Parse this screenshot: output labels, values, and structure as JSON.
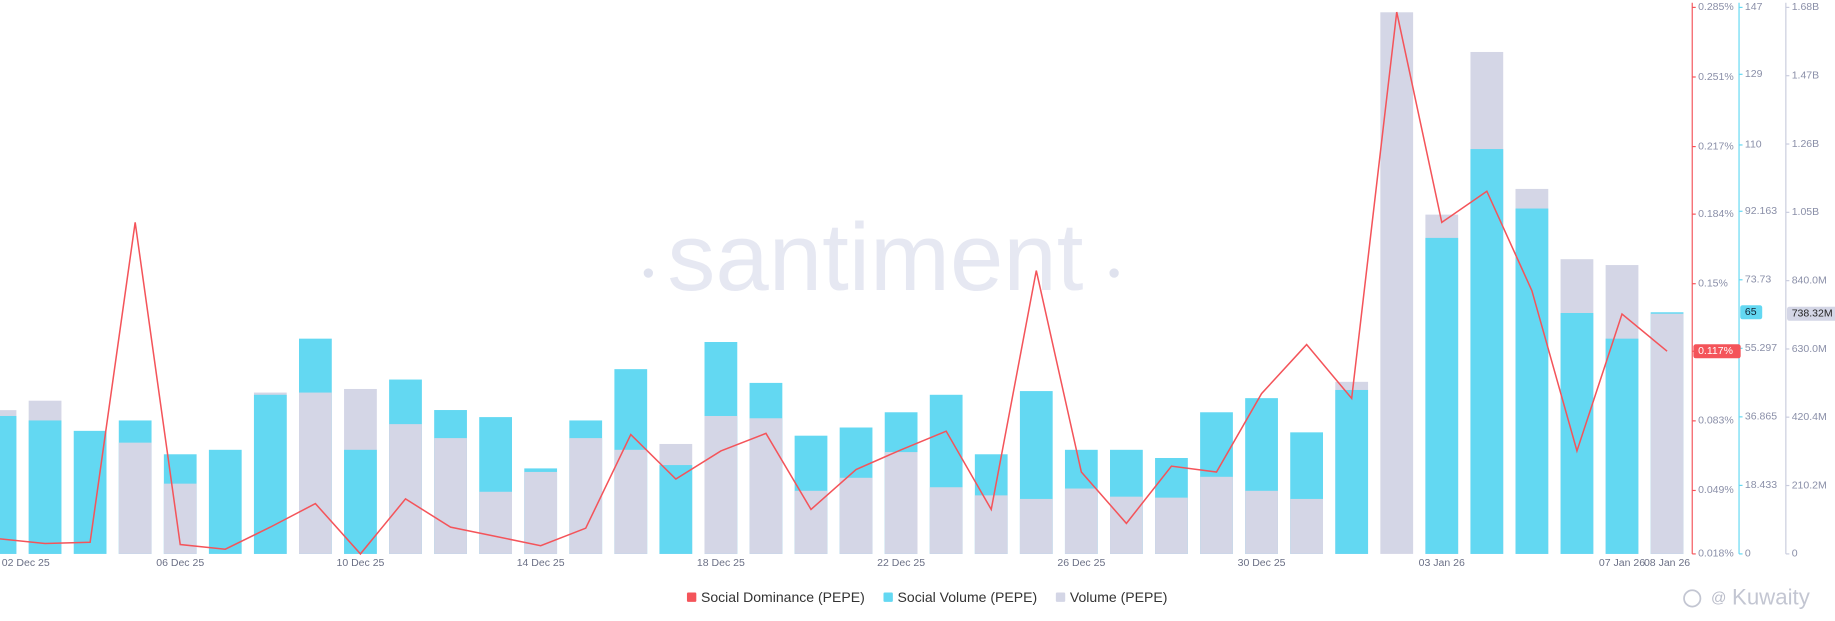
{
  "chart_data": {
    "type": "combo",
    "watermark": "santiment",
    "credit": "Kuwaity",
    "categories": [
      "02 Dec 25",
      null,
      null,
      null,
      "06 Dec 25",
      null,
      null,
      null,
      "10 Dec 25",
      null,
      null,
      null,
      "14 Dec 25",
      null,
      null,
      null,
      "18 Dec 25",
      null,
      null,
      null,
      "22 Dec 25",
      null,
      null,
      null,
      "26 Dec 25",
      null,
      null,
      null,
      "30 Dec 25",
      null,
      null,
      null,
      "03 Jan 26",
      null,
      null,
      null,
      "07 Jan 26",
      "08 Jan 26"
    ],
    "ylim": [
      0.018,
      0.285
    ],
    "yticks": [
      {
        "value": 0.018,
        "label": "0.018%"
      },
      {
        "value": 0.049,
        "label": "0.049%"
      },
      {
        "value": 0.083,
        "label": "0.083%"
      },
      {
        "value": 0.117,
        "label": "0.117%"
      },
      {
        "value": 0.15,
        "label": "0.15%"
      },
      {
        "value": 0.184,
        "label": "0.184%"
      },
      {
        "value": 0.217,
        "label": "0.217%"
      },
      {
        "value": 0.251,
        "label": "0.251%"
      },
      {
        "value": 0.285,
        "label": "0.285%"
      }
    ],
    "y2lim": [
      0,
      147
    ],
    "y2ticks": [
      0,
      18.433,
      36.865,
      55.297,
      73.73,
      92.163,
      110,
      129,
      147
    ],
    "y3lim": [
      0,
      1680000000
    ],
    "y3ticks": [
      0,
      {
        "value": 210200000,
        "label": "210.2M"
      },
      {
        "value": 420400000,
        "label": "420.4M"
      },
      {
        "value": 630000000,
        "label": "630.0M"
      },
      {
        "value": 840000000,
        "label": "840.0M"
      },
      {
        "value": 1050000000,
        "label": "1.05B"
      },
      {
        "value": 1260000000,
        "label": "1.26B"
      },
      {
        "value": 1470000000,
        "label": "1.47B"
      },
      {
        "value": 1680000000,
        "label": "1.68B"
      }
    ],
    "series": [
      {
        "name": "Social Dominance (PEPE)",
        "type": "line",
        "axis": "y",
        "color": "#f4545a",
        "last_label": "0.117%",
        "values": [
          0.0254,
          0.0231,
          0.0237,
          0.18,
          0.0226,
          0.0203,
          0.0311,
          0.0426,
          0.018,
          0.0449,
          0.0311,
          0.0266,
          0.022,
          0.0306,
          0.0763,
          0.0546,
          0.0683,
          0.0769,
          0.0397,
          0.0592,
          0.0689,
          0.078,
          0.0397,
          0.1564,
          0.058,
          0.0329,
          0.0609,
          0.058,
          0.0963,
          0.1203,
          0.094,
          0.2827,
          0.18,
          0.1952,
          0.1466,
          0.0683,
          0.1352,
          0.117
        ]
      },
      {
        "name": "Social Volume (PEPE)",
        "type": "bar",
        "axis": "y2",
        "color": "#63d8f2",
        "last_label": "65",
        "values": [
          37.1,
          35.9,
          33.1,
          35.9,
          26.8,
          28.0,
          42.8,
          57.9,
          28.0,
          46.9,
          38.7,
          36.8,
          23.0,
          35.9,
          49.7,
          23.9,
          57.0,
          46.0,
          31.8,
          34.0,
          38.1,
          42.8,
          26.8,
          43.8,
          28.0,
          28.0,
          25.8,
          38.1,
          41.9,
          32.7,
          44.1,
          null,
          85.0,
          108.9,
          92.9,
          64.8,
          57.9,
          65
        ]
      },
      {
        "name": "Volume (PEPE)",
        "type": "bar",
        "axis": "y3",
        "color": "#d4d6e6",
        "last_label": "738.32M",
        "values": [
          442000000,
          471000000,
          null,
          342000000,
          216000000,
          null,
          496000000,
          496000000,
          507000000,
          399000000,
          356000000,
          191000000,
          252000000,
          356000000,
          320000000,
          338000000,
          424000000,
          417000000,
          194000000,
          234000000,
          313000000,
          205000000,
          180000000,
          169000000,
          201000000,
          176000000,
          173000000,
          237000000,
          194000000,
          169000000,
          529000000,
          1665000000,
          1043000000,
          1543000000,
          1122000000,
          906000000,
          888000000,
          738320000
        ]
      }
    ]
  }
}
